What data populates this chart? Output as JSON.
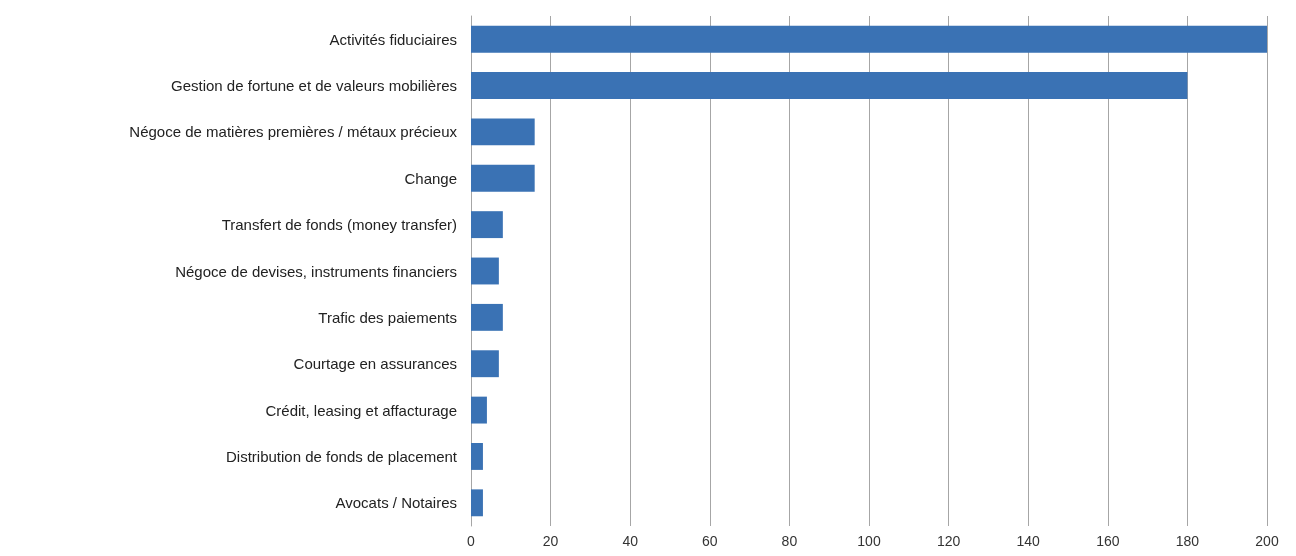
{
  "chart_data": {
    "type": "bar",
    "orientation": "horizontal",
    "categories": [
      "Activités fiduciaires",
      "Gestion de fortune et de valeurs mobilières",
      "Négoce de matières premières / métaux précieux",
      "Change",
      "Transfert de fonds (money transfer)",
      "Négoce de devises, instruments financiers",
      "Trafic des paiements",
      "Courtage en assurances",
      "Crédit, leasing et affacturage",
      "Distribution de fonds de placement",
      "Avocats / Notaires"
    ],
    "values": [
      200,
      180,
      16,
      16,
      8,
      7,
      8,
      7,
      4,
      3,
      3
    ],
    "color": "#3a72b4",
    "xlim": [
      0,
      200
    ],
    "xticks": [
      0,
      20,
      40,
      60,
      80,
      100,
      120,
      140,
      160,
      180,
      200
    ],
    "grid": "x"
  }
}
